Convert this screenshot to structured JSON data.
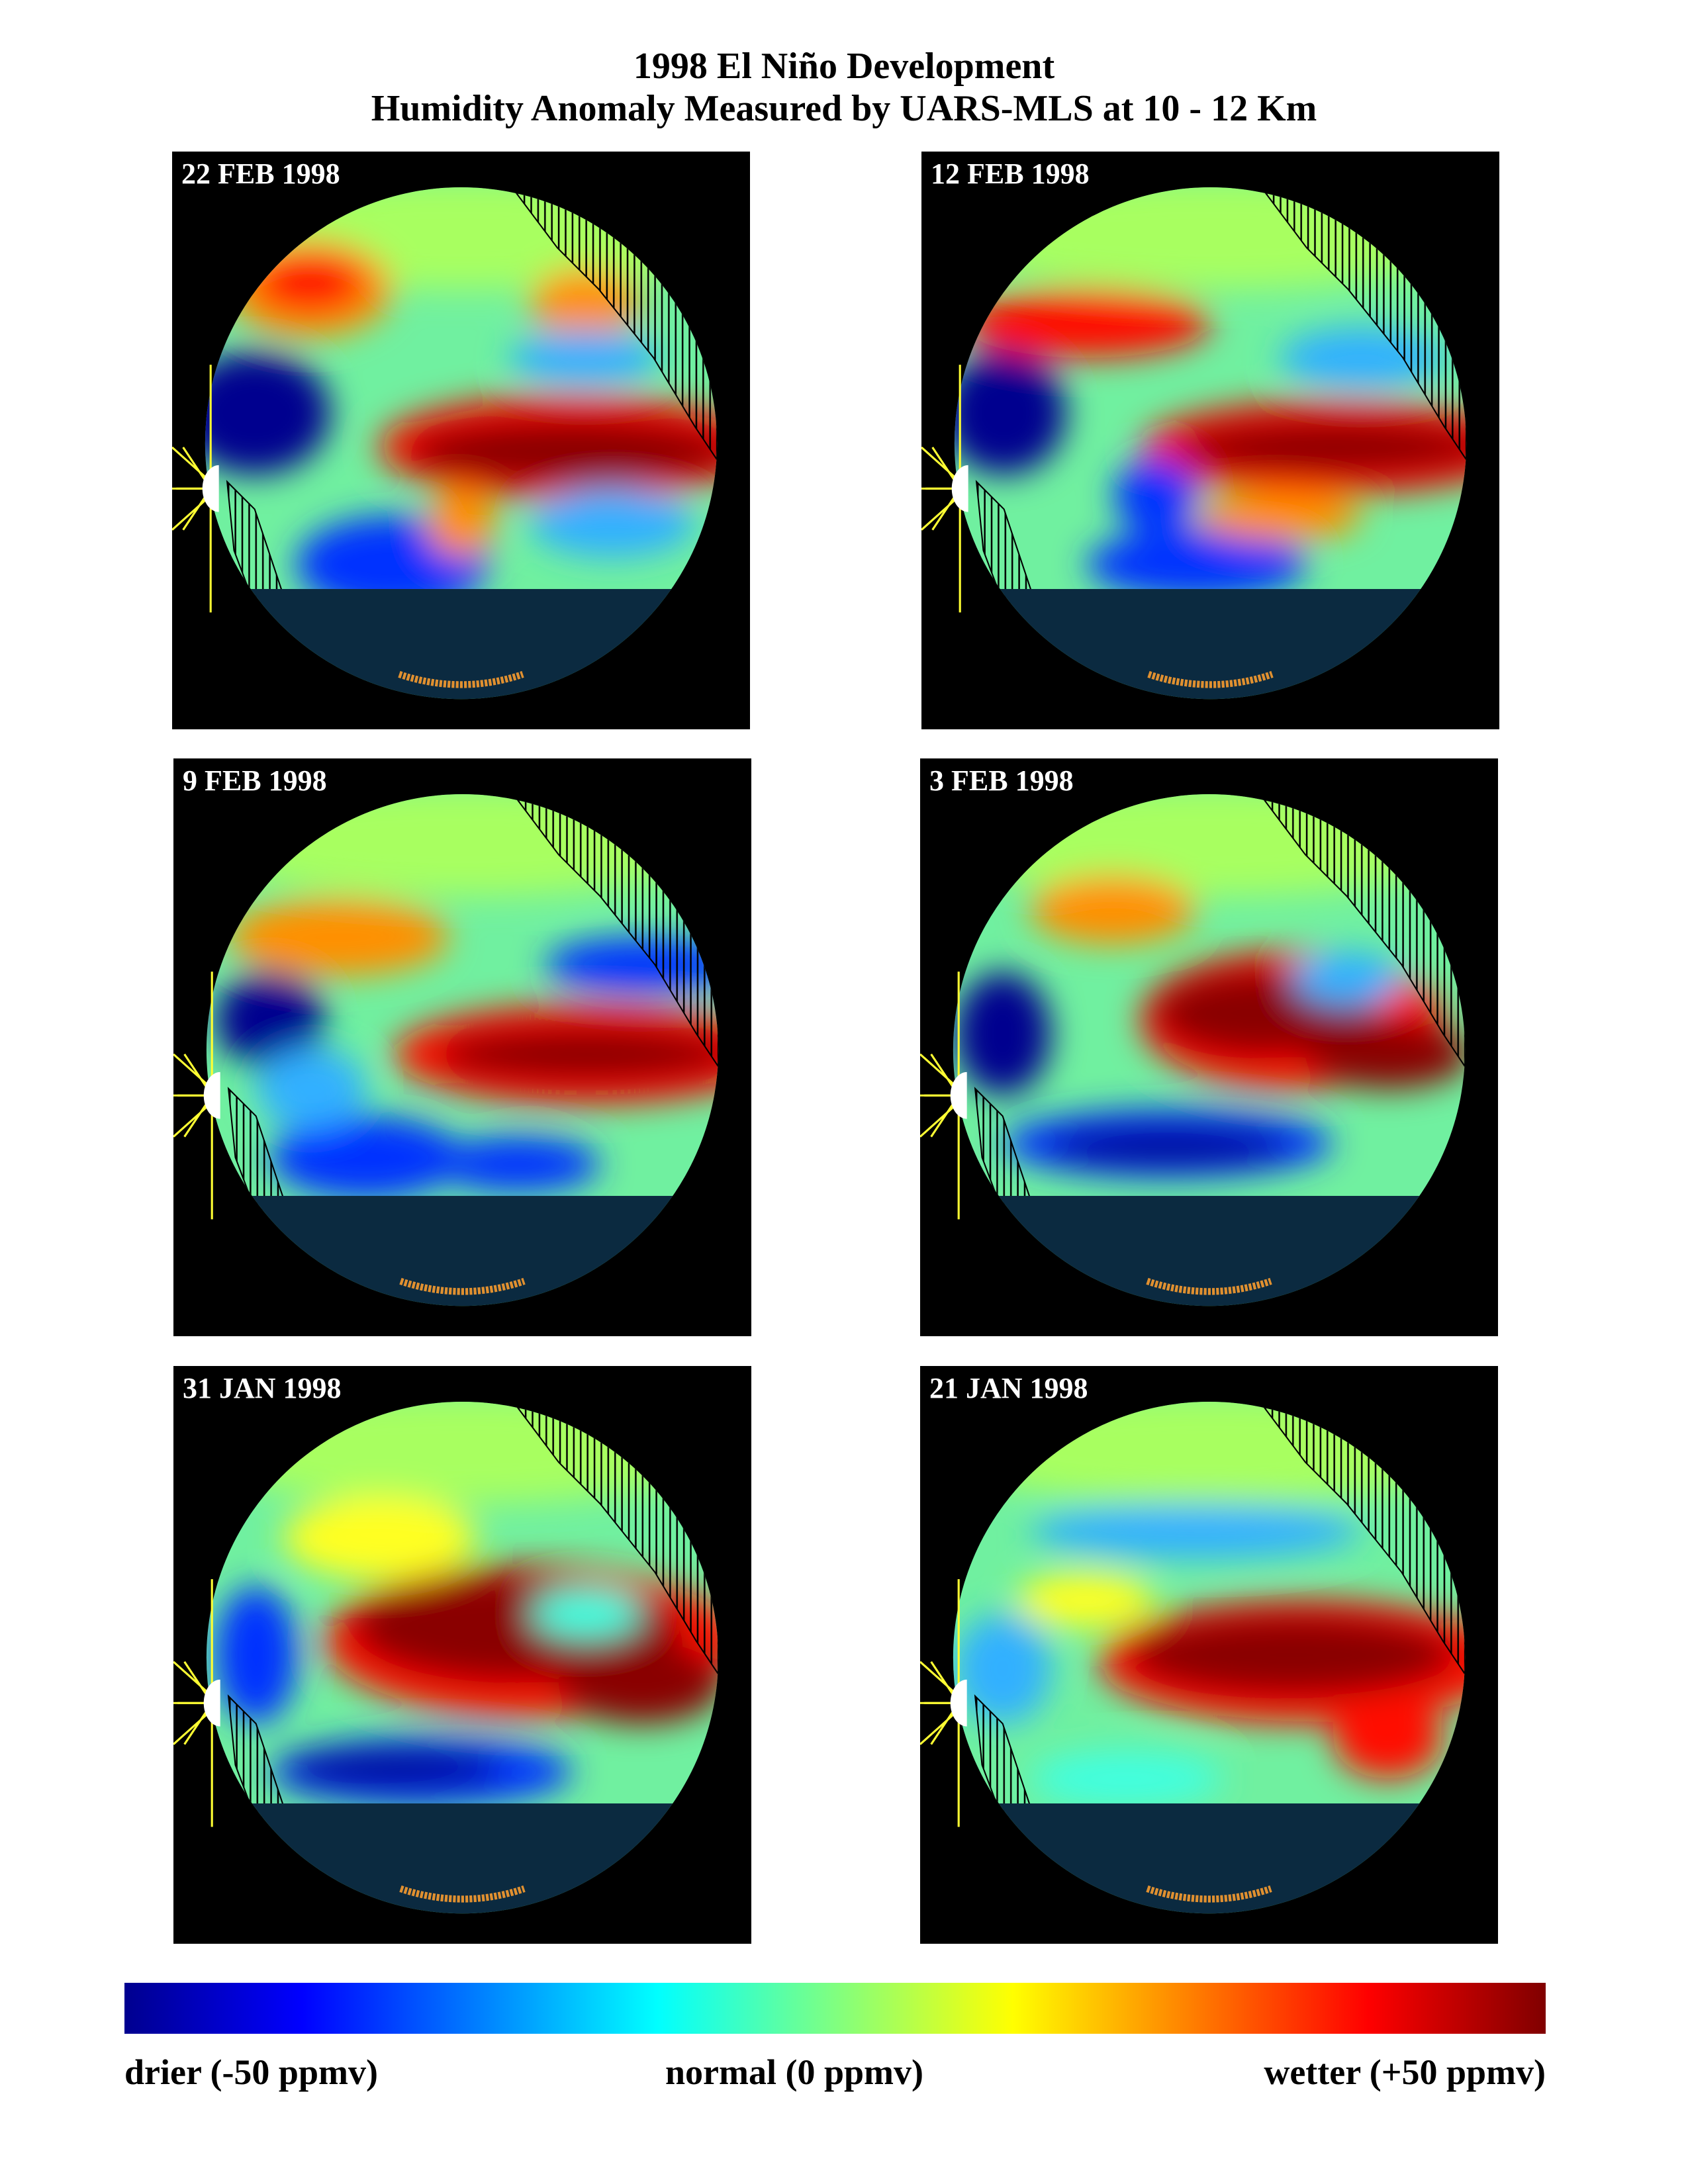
{
  "title": {
    "line1": "1998 El Niño Development",
    "line2": "Humidity Anomaly Measured by UARS-MLS at 10 - 12 Km"
  },
  "panels": [
    {
      "date": "22 FEB 1998"
    },
    {
      "date": "12 FEB 1998"
    },
    {
      "date": "9 FEB 1998"
    },
    {
      "date": "3 FEB 1998"
    },
    {
      "date": "31 JAN 1998"
    },
    {
      "date": "21 JAN 1998"
    }
  ],
  "colorbar": {
    "min_label": "drier (-50 ppmv)",
    "mid_label": "normal (0 ppmv)",
    "max_label": "wetter (+50 ppmv)",
    "range": [
      -50,
      50
    ],
    "unit": "ppmv",
    "colormap": [
      "#00008f",
      "#0000ff",
      "#00ffff",
      "#80ff80",
      "#ffff00",
      "#ff0000",
      "#800000"
    ]
  },
  "colors": {
    "panel_background": "#000000",
    "no_data_region": "#0b2a40",
    "land_hatch": "#000000",
    "sun": "#ffffff",
    "sun_rays": "#ffff33"
  }
}
